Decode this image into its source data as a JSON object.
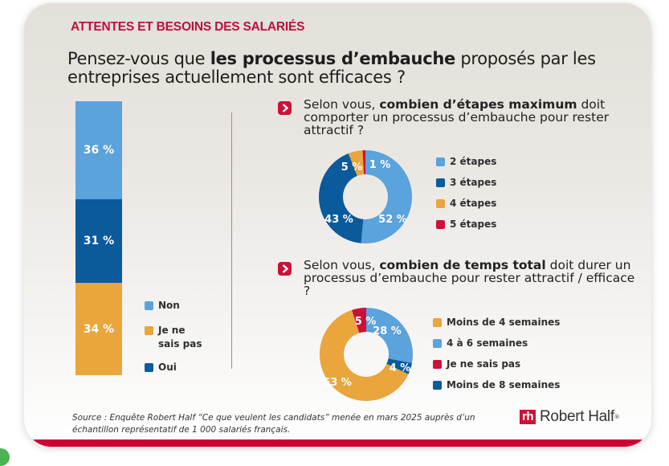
{
  "header": {
    "kicker": "ATTENTES ET BESOINS DES SALARIÉS",
    "title_pre": "Pensez-vous que ",
    "title_bold": "les processus d’embauche",
    "title_post": " proposés par les entreprises actuellement sont efficaces ?"
  },
  "colors": {
    "light_blue": "#5aa3dc",
    "dark_blue": "#0a5a9c",
    "orange": "#eaa53c",
    "red": "#cc1139",
    "accent": "#cc0033"
  },
  "questions": [
    {
      "pre": "Selon vous, ",
      "bold": "combien d’étapes maximum",
      "post": " doit comporter un processus d’embauche pour rester attractif ?"
    },
    {
      "pre": "Selon vous, ",
      "bold": "combien de temps total",
      "post": " doit durer un processus d’embauche pour rester attractif / efficace ?"
    }
  ],
  "chart_data": [
    {
      "type": "bar",
      "stacked": true,
      "title": "Pensez-vous que les processus d’embauche proposés par les entreprises actuellement sont efficaces ?",
      "unit": "%",
      "series": [
        {
          "name": "Non",
          "value": 36,
          "label": "36 %",
          "color": "#5aa3dc"
        },
        {
          "name": "Oui",
          "value": 31,
          "label": "31 %",
          "color": "#0a5a9c"
        },
        {
          "name": "Je ne sais pas",
          "value": 34,
          "label": "34 %",
          "color": "#eaa53c"
        }
      ],
      "legend": [
        {
          "name": "Non",
          "color": "#5aa3dc"
        },
        {
          "name": "Je ne sais pas",
          "color": "#eaa53c"
        },
        {
          "name": "Oui",
          "color": "#0a5a9c"
        }
      ],
      "legend_position": "right"
    },
    {
      "type": "pie",
      "donut": true,
      "title": "Selon vous, combien d’étapes maximum doit comporter un processus d’embauche pour rester attractif ?",
      "slices": [
        {
          "name": "2 étapes",
          "value": 52,
          "label": "52 %",
          "color": "#5aa3dc"
        },
        {
          "name": "3 étapes",
          "value": 43,
          "label": "43 %",
          "color": "#0a5a9c"
        },
        {
          "name": "4 étapes",
          "value": 5,
          "label": "5 %",
          "color": "#eaa53c"
        },
        {
          "name": "5 étapes",
          "value": 1,
          "label": "1 %",
          "color": "#cc1139"
        }
      ],
      "legend": [
        "2 étapes",
        "3 étapes",
        "4 étapes",
        "5 étapes"
      ],
      "legend_position": "right"
    },
    {
      "type": "pie",
      "donut": true,
      "title": "Selon vous, combien de temps total doit durer un processus d’embauche pour rester attractif / efficace ?",
      "slices": [
        {
          "name": "4 à 6 semaines",
          "value": 28,
          "label": "28 %",
          "color": "#5aa3dc"
        },
        {
          "name": "Moins de 8 semaines",
          "value": 4,
          "label": "4 %",
          "color": "#0a5a9c"
        },
        {
          "name": "Moins de 4 semaines",
          "value": 63,
          "label": "63 %",
          "color": "#eaa53c"
        },
        {
          "name": "Je ne sais pas",
          "value": 5,
          "label": "5 %",
          "color": "#cc1139"
        }
      ],
      "legend": [
        {
          "name": "Moins de 4 semaines",
          "color": "#eaa53c"
        },
        {
          "name": "4 à 6 semaines",
          "color": "#5aa3dc"
        },
        {
          "name": "Je ne sais pas",
          "color": "#cc1139"
        },
        {
          "name": "Moins de 8 semaines",
          "color": "#0a5a9c"
        }
      ],
      "legend_position": "right"
    }
  ],
  "footer": {
    "source": "Source : Enquête Robert Half “Ce que veulent les candidats” menée en mars 2025 auprès d’un échantillon représentatif de 1 000 salariés français.",
    "logo_mark": "rh",
    "logo_text": "Robert Half",
    "logo_reg": "®"
  }
}
